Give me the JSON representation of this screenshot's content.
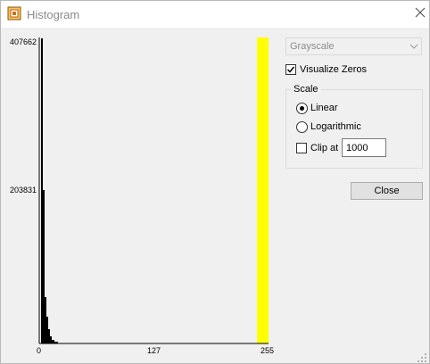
{
  "window": {
    "title": "Histogram"
  },
  "icons": {
    "app": "histogram-app-icon",
    "close": "close-icon",
    "dropdown": "chevron-down-icon",
    "resize": "resize-grip-icon"
  },
  "histogram": {
    "y_ticks": [
      "407662",
      "203831"
    ],
    "x_ticks": [
      "0",
      "127",
      "255"
    ],
    "highlight_color": "#ffff00"
  },
  "channel_select": {
    "value": "Grayscale",
    "enabled": false
  },
  "visualize_zeros": {
    "label": "Visualize Zeros",
    "checked": true
  },
  "scale": {
    "legend": "Scale",
    "options": [
      {
        "label": "Linear",
        "selected": true
      },
      {
        "label": "Logarithmic",
        "selected": false
      }
    ],
    "clip": {
      "label": "Clip at",
      "checked": false,
      "value": "1000"
    }
  },
  "close_button": {
    "label": "Close"
  }
}
